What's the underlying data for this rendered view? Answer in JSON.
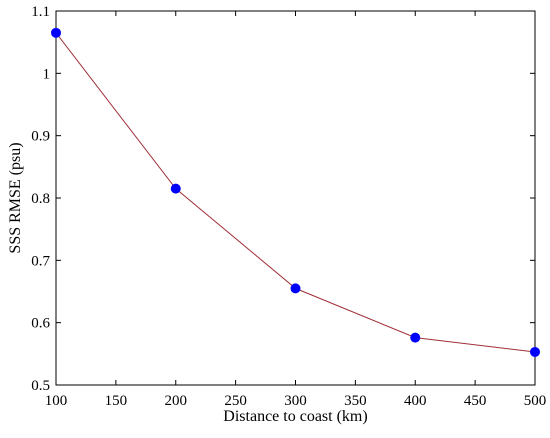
{
  "chart_data": {
    "type": "line",
    "title": "",
    "xlabel": "Distance to coast (km)",
    "ylabel": "SSS RMSE (psu)",
    "xlim": [
      100,
      500
    ],
    "ylim": [
      0.5,
      1.1
    ],
    "xticks": [
      100,
      150,
      200,
      250,
      300,
      350,
      400,
      450,
      500
    ],
    "yticks": [
      0.5,
      0.6,
      0.7,
      0.8,
      0.9,
      1,
      1.1
    ],
    "xtick_labels": [
      "100",
      "150",
      "200",
      "250",
      "300",
      "350",
      "400",
      "450",
      "500"
    ],
    "ytick_labels": [
      "0.5",
      "0.6",
      "0.7",
      "0.8",
      "0.9",
      "1",
      "1.1"
    ],
    "grid": false,
    "series": [
      {
        "x": [
          100,
          200,
          300,
          400,
          500
        ],
        "y": [
          1.065,
          0.815,
          0.655,
          0.576,
          0.553
        ],
        "line_color": "#a0303a",
        "marker_color": "#0000ff"
      }
    ]
  }
}
